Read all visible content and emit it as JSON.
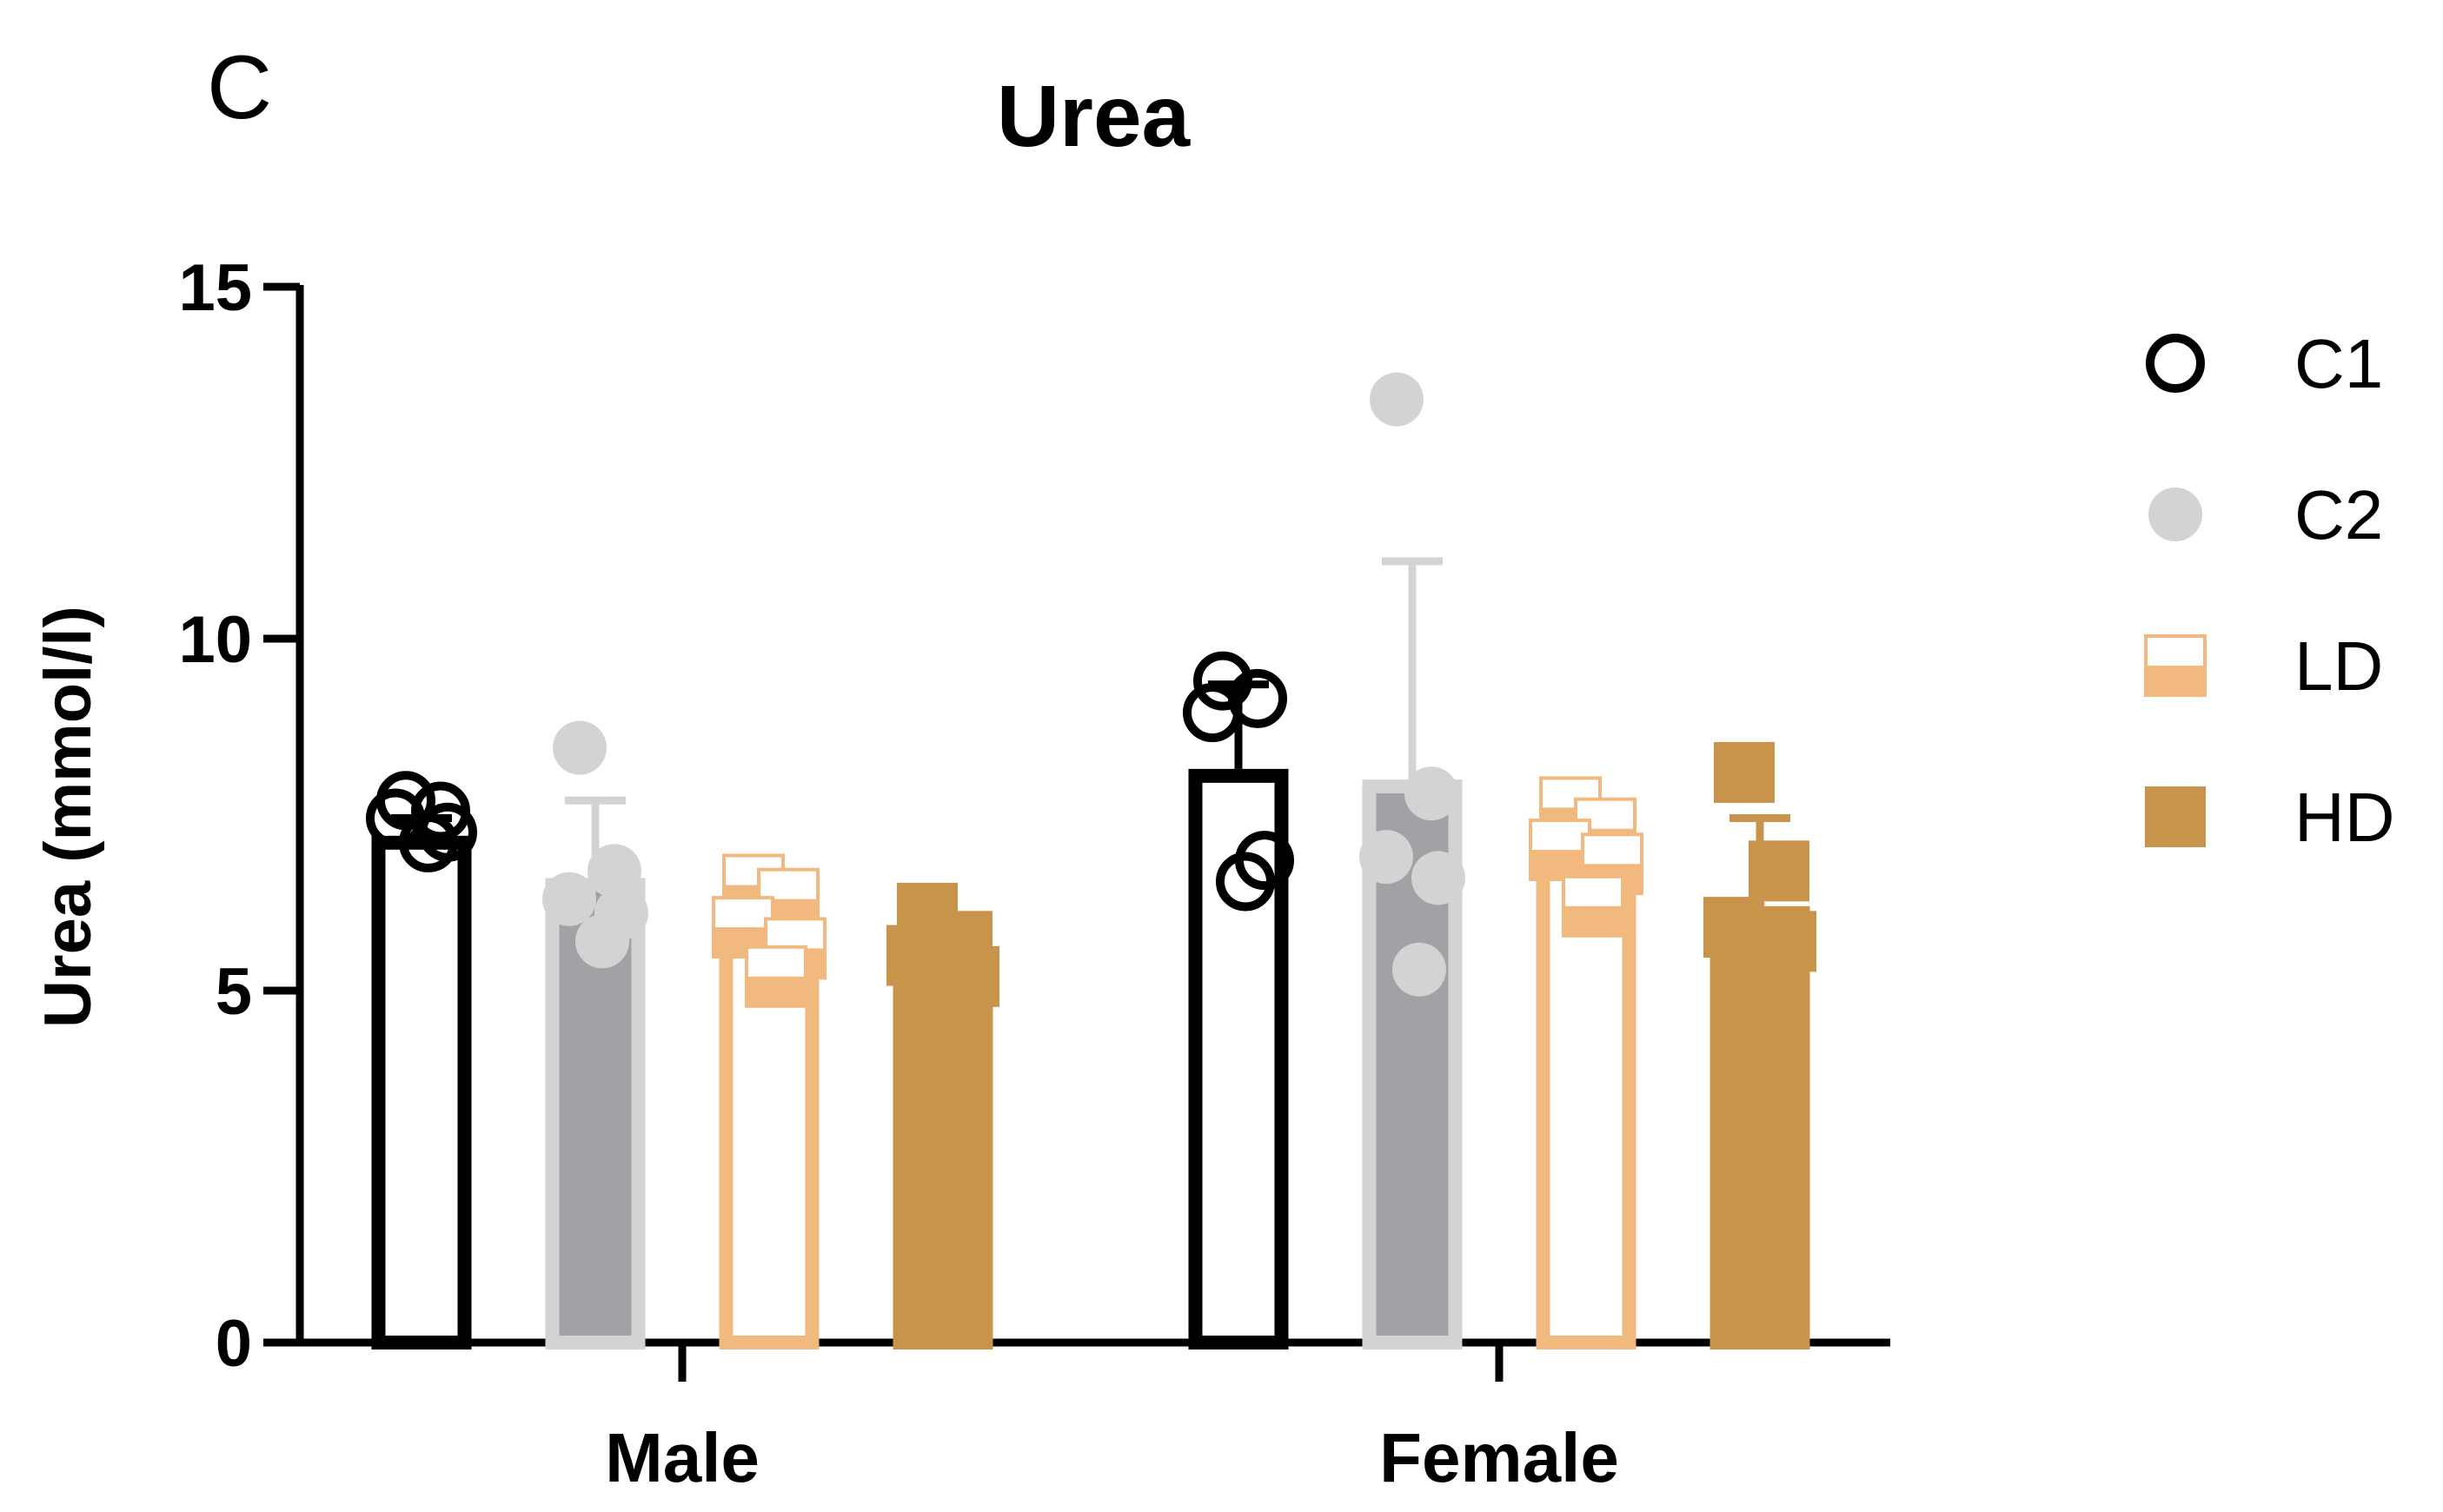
{
  "panel_letter": "C",
  "chart_data": {
    "type": "bar",
    "title": "Urea",
    "xlabel": "",
    "ylabel": "Urea (mmol/l)",
    "ylim": [
      0,
      15
    ],
    "yticks": [
      0,
      5,
      10,
      15
    ],
    "grid": false,
    "legend_position": "right",
    "categories": [
      "Male",
      "Female"
    ],
    "series": [
      {
        "name": "C1",
        "color": "#000000",
        "fill": "#ffffff",
        "marker": "open-circle",
        "means": [
          7.2,
          8.15
        ],
        "sd": [
          0.25,
          1.2
        ],
        "points": [
          [
            7.7,
            7.55,
            7.45,
            7.25,
            7.1
          ],
          [
            9.4,
            9.15,
            8.95,
            6.85,
            6.55
          ]
        ]
      },
      {
        "name": "C2",
        "color": "#d3d3d3",
        "fill": "#a2a2a6",
        "marker": "filled-circle",
        "means": [
          6.6,
          8.0
        ],
        "sd": [
          1.1,
          3.1
        ],
        "points": [
          [
            8.45,
            6.7,
            6.3,
            6.1,
            5.7
          ],
          [
            13.4,
            7.8,
            6.9,
            6.6,
            5.3
          ]
        ]
      },
      {
        "name": "LD",
        "color": "#f2b97f",
        "fill": "#ffffff",
        "marker": "half-square",
        "means": [
          5.8,
          7.0
        ],
        "sd": [
          0.5,
          0.65
        ],
        "points": [
          [
            6.5,
            6.3,
            5.9,
            5.6,
            5.2
          ],
          [
            7.6,
            7.3,
            7.0,
            6.8,
            6.2
          ]
        ]
      },
      {
        "name": "HD",
        "color": "#c8944c",
        "fill": "#c8944c",
        "marker": "filled-square",
        "means": [
          5.5,
          6.2
        ],
        "sd": [
          0.4,
          1.25
        ],
        "points": [
          [
            6.1,
            5.7,
            5.5,
            5.2,
            4.8
          ],
          [
            8.1,
            6.7,
            5.9,
            5.7,
            5.3
          ]
        ]
      }
    ]
  }
}
